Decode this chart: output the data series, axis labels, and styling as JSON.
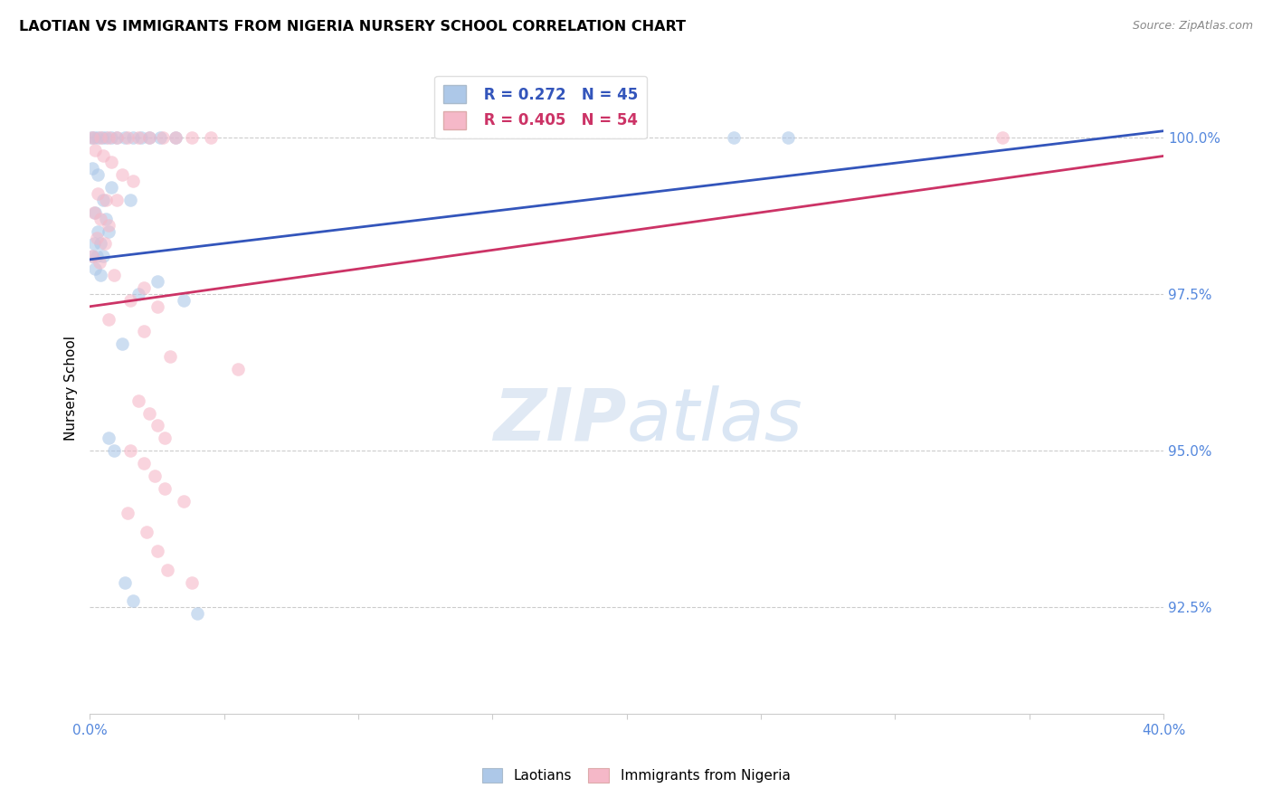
{
  "title": "LAOTIAN VS IMMIGRANTS FROM NIGERIA NURSERY SCHOOL CORRELATION CHART",
  "source": "Source: ZipAtlas.com",
  "ylabel": "Nursery School",
  "yticks": [
    92.5,
    95.0,
    97.5,
    100.0
  ],
  "ytick_labels": [
    "92.5%",
    "95.0%",
    "97.5%",
    "100.0%"
  ],
  "xmin": 0.0,
  "xmax": 40.0,
  "ymin": 90.8,
  "ymax": 101.2,
  "legend_blue_r": "R = 0.272",
  "legend_blue_n": "N = 45",
  "legend_pink_r": "R = 0.405",
  "legend_pink_n": "N = 54",
  "legend_blue_label": "Laotians",
  "legend_pink_label": "Immigrants from Nigeria",
  "blue_color": "#adc8e8",
  "pink_color": "#f5b8c8",
  "blue_line_color": "#3355bb",
  "pink_line_color": "#cc3366",
  "blue_line": [
    [
      0.0,
      98.05
    ],
    [
      40.0,
      100.1
    ]
  ],
  "pink_line": [
    [
      0.0,
      97.3
    ],
    [
      40.0,
      99.7
    ]
  ],
  "blue_scatter": [
    [
      0.05,
      100.0
    ],
    [
      0.15,
      100.0
    ],
    [
      0.3,
      100.0
    ],
    [
      0.45,
      100.0
    ],
    [
      0.6,
      100.0
    ],
    [
      0.8,
      100.0
    ],
    [
      1.0,
      100.0
    ],
    [
      1.3,
      100.0
    ],
    [
      1.6,
      100.0
    ],
    [
      1.9,
      100.0
    ],
    [
      2.2,
      100.0
    ],
    [
      2.6,
      100.0
    ],
    [
      3.2,
      100.0
    ],
    [
      0.1,
      99.5
    ],
    [
      0.3,
      99.4
    ],
    [
      0.8,
      99.2
    ],
    [
      0.5,
      99.0
    ],
    [
      1.5,
      99.0
    ],
    [
      0.2,
      98.8
    ],
    [
      0.6,
      98.7
    ],
    [
      0.3,
      98.5
    ],
    [
      0.7,
      98.5
    ],
    [
      0.15,
      98.3
    ],
    [
      0.4,
      98.3
    ],
    [
      0.1,
      98.1
    ],
    [
      0.25,
      98.1
    ],
    [
      0.5,
      98.1
    ],
    [
      0.2,
      97.9
    ],
    [
      0.4,
      97.8
    ],
    [
      2.5,
      97.7
    ],
    [
      1.8,
      97.5
    ],
    [
      3.5,
      97.4
    ],
    [
      1.2,
      96.7
    ],
    [
      0.7,
      95.2
    ],
    [
      0.9,
      95.0
    ],
    [
      1.3,
      92.9
    ],
    [
      1.6,
      92.6
    ],
    [
      4.0,
      92.4
    ],
    [
      24.0,
      100.0
    ],
    [
      26.0,
      100.0
    ]
  ],
  "pink_scatter": [
    [
      0.1,
      100.0
    ],
    [
      0.4,
      100.0
    ],
    [
      0.7,
      100.0
    ],
    [
      1.0,
      100.0
    ],
    [
      1.4,
      100.0
    ],
    [
      1.8,
      100.0
    ],
    [
      2.2,
      100.0
    ],
    [
      2.7,
      100.0
    ],
    [
      3.2,
      100.0
    ],
    [
      3.8,
      100.0
    ],
    [
      4.5,
      100.0
    ],
    [
      34.0,
      100.0
    ],
    [
      0.2,
      99.8
    ],
    [
      0.5,
      99.7
    ],
    [
      0.8,
      99.6
    ],
    [
      1.2,
      99.4
    ],
    [
      1.6,
      99.3
    ],
    [
      0.3,
      99.1
    ],
    [
      0.6,
      99.0
    ],
    [
      1.0,
      99.0
    ],
    [
      0.15,
      98.8
    ],
    [
      0.4,
      98.7
    ],
    [
      0.7,
      98.6
    ],
    [
      0.25,
      98.4
    ],
    [
      0.55,
      98.3
    ],
    [
      0.1,
      98.1
    ],
    [
      0.35,
      98.0
    ],
    [
      0.9,
      97.8
    ],
    [
      2.0,
      97.6
    ],
    [
      1.5,
      97.4
    ],
    [
      2.5,
      97.3
    ],
    [
      0.7,
      97.1
    ],
    [
      2.0,
      96.9
    ],
    [
      3.0,
      96.5
    ],
    [
      5.5,
      96.3
    ],
    [
      1.8,
      95.8
    ],
    [
      2.2,
      95.6
    ],
    [
      2.5,
      95.4
    ],
    [
      2.8,
      95.2
    ],
    [
      1.5,
      95.0
    ],
    [
      2.0,
      94.8
    ],
    [
      2.4,
      94.6
    ],
    [
      2.8,
      94.4
    ],
    [
      3.5,
      94.2
    ],
    [
      1.4,
      94.0
    ],
    [
      2.1,
      93.7
    ],
    [
      2.5,
      93.4
    ],
    [
      2.9,
      93.1
    ],
    [
      3.8,
      92.9
    ]
  ]
}
